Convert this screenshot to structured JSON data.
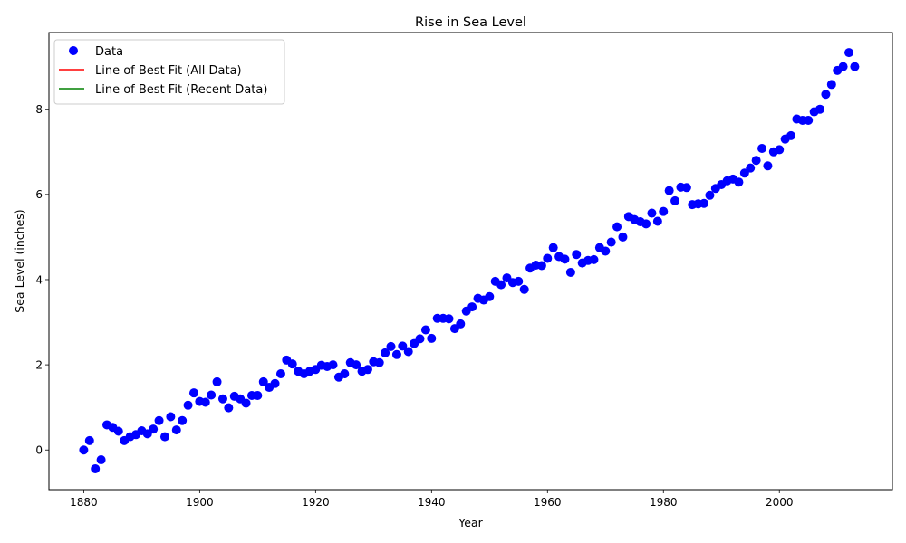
{
  "chart_data": {
    "type": "scatter",
    "title": "Rise in Sea Level",
    "xlabel": "Year",
    "ylabel": "Sea Level (inches)",
    "xlim": [
      1874,
      2019.5
    ],
    "ylim": [
      -0.93,
      9.8
    ],
    "xticks": [
      1880,
      1900,
      1920,
      1940,
      1960,
      1980,
      2000
    ],
    "yticks": [
      0,
      2,
      4,
      6,
      8
    ],
    "grid": false,
    "legend_position": "top-left",
    "series": [
      {
        "name": "Data",
        "kind": "scatter",
        "color": "#0000ff",
        "x": [
          1880,
          1881,
          1882,
          1883,
          1884,
          1885,
          1886,
          1887,
          1888,
          1889,
          1890,
          1891,
          1892,
          1893,
          1894,
          1895,
          1896,
          1897,
          1898,
          1899,
          1900,
          1901,
          1902,
          1903,
          1904,
          1905,
          1906,
          1907,
          1908,
          1909,
          1910,
          1911,
          1912,
          1913,
          1914,
          1915,
          1916,
          1917,
          1918,
          1919,
          1920,
          1921,
          1922,
          1923,
          1924,
          1925,
          1926,
          1927,
          1928,
          1929,
          1930,
          1931,
          1932,
          1933,
          1934,
          1935,
          1936,
          1937,
          1938,
          1939,
          1940,
          1941,
          1942,
          1943,
          1944,
          1945,
          1946,
          1947,
          1948,
          1949,
          1950,
          1951,
          1952,
          1953,
          1954,
          1955,
          1956,
          1957,
          1958,
          1959,
          1960,
          1961,
          1962,
          1963,
          1964,
          1965,
          1966,
          1967,
          1968,
          1969,
          1970,
          1971,
          1972,
          1973,
          1974,
          1975,
          1976,
          1977,
          1978,
          1979,
          1980,
          1981,
          1982,
          1983,
          1984,
          1985,
          1986,
          1987,
          1988,
          1989,
          1990,
          1991,
          1992,
          1993,
          1994,
          1995,
          1996,
          1997,
          1998,
          1999,
          2000,
          2001,
          2002,
          2003,
          2004,
          2005,
          2006,
          2007,
          2008,
          2009,
          2010,
          2011,
          2012,
          2013
        ],
        "y": [
          0.0,
          0.22,
          -0.44,
          -0.23,
          0.59,
          0.53,
          0.44,
          0.22,
          0.31,
          0.36,
          0.45,
          0.38,
          0.49,
          0.69,
          0.31,
          0.78,
          0.47,
          0.69,
          1.05,
          1.34,
          1.14,
          1.12,
          1.29,
          1.6,
          1.2,
          0.99,
          1.26,
          1.2,
          1.1,
          1.28,
          1.28,
          1.6,
          1.47,
          1.56,
          1.79,
          2.11,
          2.02,
          1.85,
          1.79,
          1.85,
          1.89,
          1.99,
          1.96,
          2.0,
          1.71,
          1.79,
          2.05,
          2.0,
          1.85,
          1.89,
          2.07,
          2.05,
          2.28,
          2.43,
          2.24,
          2.44,
          2.31,
          2.5,
          2.61,
          2.82,
          2.62,
          3.09,
          3.09,
          3.08,
          2.85,
          2.96,
          3.26,
          3.36,
          3.56,
          3.52,
          3.6,
          3.96,
          3.88,
          4.04,
          3.93,
          3.96,
          3.77,
          4.27,
          4.34,
          4.33,
          4.5,
          4.75,
          4.54,
          4.48,
          4.17,
          4.59,
          4.39,
          4.45,
          4.47,
          4.75,
          4.67,
          4.88,
          5.24,
          5.0,
          5.48,
          5.41,
          5.36,
          5.31,
          5.56,
          5.37,
          5.6,
          6.09,
          5.85,
          6.17,
          6.16,
          5.76,
          5.78,
          5.79,
          5.98,
          6.14,
          6.23,
          6.32,
          6.36,
          6.29,
          6.5,
          6.62,
          6.8,
          7.08,
          6.67,
          7.0,
          7.05,
          7.3,
          7.38,
          7.77,
          7.74,
          7.74,
          7.94,
          8.0,
          8.35,
          8.58,
          8.91,
          9.0,
          9.33,
          9.0
        ]
      },
      {
        "name": "Line of Best Fit (All Data)",
        "kind": "line",
        "color": "#ff0000",
        "x": [],
        "y": []
      },
      {
        "name": "Line of Best Fit (Recent Data)",
        "kind": "line",
        "color": "#008000",
        "x": [],
        "y": []
      }
    ]
  }
}
